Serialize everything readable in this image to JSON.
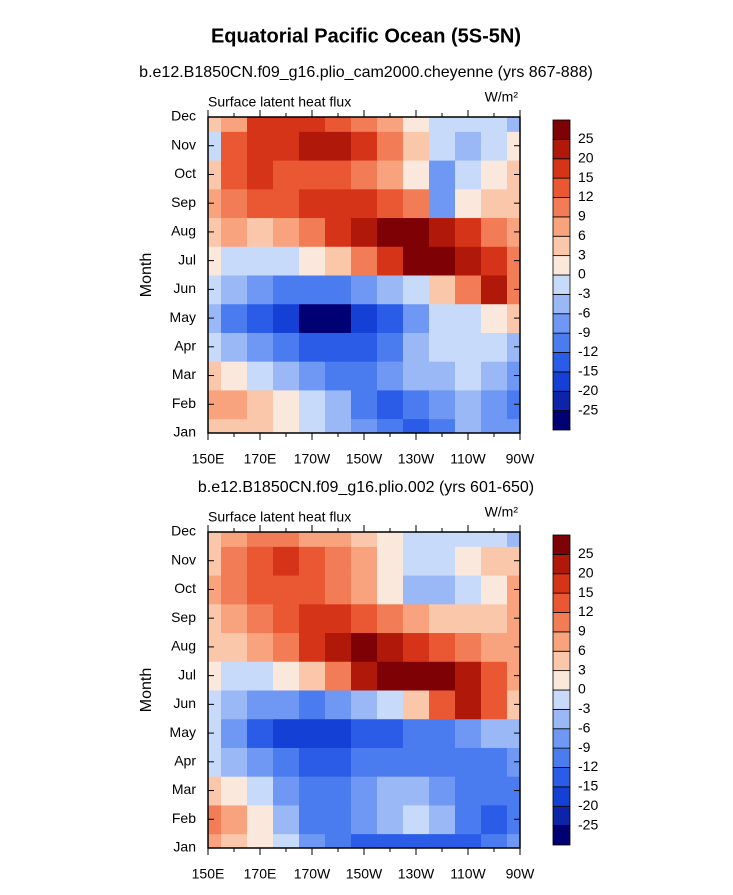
{
  "title": "Equatorial Pacific Ocean (5S-5N)",
  "chart_data": [
    {
      "type": "heatmap",
      "subtitle": "b.e12.B1850CN.f09_g16.plio_cam2000.cheyenne (yrs 867-888)",
      "label": "Surface latent heat flux",
      "units": "W/m²",
      "ylabel": "Month",
      "x": [
        150,
        160,
        170,
        180,
        190,
        200,
        210,
        220,
        230,
        240,
        250,
        260,
        270
      ],
      "categories": [
        "Jan",
        "Feb",
        "Mar",
        "Apr",
        "May",
        "Jun",
        "Jul",
        "Aug",
        "Sep",
        "Oct",
        "Nov",
        "Dec"
      ],
      "values": [
        [
          3,
          3,
          3,
          0,
          -3,
          -6,
          -9,
          -12,
          -15,
          -12,
          -6,
          -9,
          -9
        ],
        [
          6,
          6,
          3,
          0,
          -3,
          -6,
          -12,
          -15,
          -12,
          -9,
          -6,
          -9,
          -12
        ],
        [
          3,
          0,
          -3,
          -6,
          -9,
          -12,
          -12,
          -9,
          -6,
          -6,
          -3,
          -6,
          -9
        ],
        [
          -3,
          -6,
          -9,
          -12,
          -15,
          -15,
          -15,
          -12,
          -6,
          -3,
          -3,
          -3,
          -6
        ],
        [
          -6,
          -12,
          -15,
          -20,
          -26,
          -26,
          -20,
          -15,
          -9,
          -3,
          -3,
          0,
          3
        ],
        [
          -3,
          -6,
          -9,
          -12,
          -12,
          -12,
          -9,
          -6,
          -3,
          3,
          9,
          20,
          9
        ],
        [
          0,
          -3,
          -3,
          -3,
          0,
          3,
          9,
          15,
          25,
          25,
          20,
          15,
          9
        ],
        [
          3,
          6,
          3,
          6,
          9,
          15,
          20,
          25,
          25,
          20,
          15,
          9,
          6
        ],
        [
          6,
          9,
          12,
          12,
          15,
          15,
          15,
          12,
          9,
          -9,
          0,
          3,
          3
        ],
        [
          3,
          12,
          15,
          12,
          12,
          12,
          9,
          6,
          0,
          -9,
          -3,
          0,
          3
        ],
        [
          -3,
          12,
          15,
          15,
          20,
          20,
          15,
          9,
          3,
          -3,
          -6,
          -3,
          0
        ],
        [
          3,
          6,
          15,
          15,
          15,
          12,
          9,
          6,
          0,
          -3,
          -3,
          -3,
          -6
        ]
      ],
      "xlim": [
        150,
        270
      ],
      "xticks": [
        {
          "value": 150,
          "label": "150E"
        },
        {
          "value": 170,
          "label": "170E"
        },
        {
          "value": 190,
          "label": "170W"
        },
        {
          "value": 210,
          "label": "150W"
        },
        {
          "value": 230,
          "label": "130W"
        },
        {
          "value": 250,
          "label": "110W"
        },
        {
          "value": 270,
          "label": "90W"
        }
      ],
      "levels": [
        -25,
        -20,
        -15,
        -12,
        -9,
        -6,
        -3,
        0,
        3,
        6,
        9,
        12,
        15,
        20,
        25
      ],
      "colors": [
        "#000073",
        "#0d23a8",
        "#1440d6",
        "#2a5ce8",
        "#4a7cf0",
        "#6f98f4",
        "#9ab8f6",
        "#c8daf9",
        "#fbe8dc",
        "#fbc7aa",
        "#f8a27e",
        "#f27c55",
        "#ea5733",
        "#d53419",
        "#b0180a",
        "#7e0205"
      ]
    },
    {
      "type": "heatmap",
      "subtitle": "b.e12.B1850CN.f09_g16.plio.002 (yrs 601-650)",
      "label": "Surface latent heat flux",
      "units": "W/m²",
      "ylabel": "Month",
      "x": [
        150,
        160,
        170,
        180,
        190,
        200,
        210,
        220,
        230,
        240,
        250,
        260,
        270
      ],
      "categories": [
        "Jan",
        "Feb",
        "Mar",
        "Apr",
        "May",
        "Jun",
        "Jul",
        "Aug",
        "Sep",
        "Oct",
        "Nov",
        "Dec"
      ],
      "values": [
        [
          6,
          3,
          0,
          -3,
          -9,
          -12,
          -15,
          -15,
          -15,
          -15,
          -15,
          -12,
          -9
        ],
        [
          9,
          6,
          0,
          -6,
          -12,
          -12,
          -9,
          -6,
          -3,
          -6,
          -12,
          -15,
          -12
        ],
        [
          3,
          0,
          -3,
          -9,
          -12,
          -12,
          -9,
          -6,
          -6,
          -9,
          -12,
          -12,
          -12
        ],
        [
          -3,
          -6,
          -9,
          -12,
          -15,
          -15,
          -12,
          -12,
          -12,
          -12,
          -12,
          -12,
          -9
        ],
        [
          -3,
          -9,
          -15,
          -20,
          -20,
          -20,
          -15,
          -15,
          -12,
          -12,
          -9,
          -6,
          -6
        ],
        [
          -3,
          -6,
          -9,
          -9,
          -12,
          -9,
          -6,
          -3,
          3,
          12,
          20,
          12,
          3
        ],
        [
          0,
          -3,
          -3,
          0,
          3,
          9,
          20,
          25,
          25,
          25,
          20,
          12,
          6
        ],
        [
          3,
          3,
          6,
          9,
          15,
          20,
          25,
          20,
          15,
          12,
          9,
          6,
          6
        ],
        [
          3,
          6,
          9,
          12,
          15,
          15,
          12,
          9,
          6,
          3,
          3,
          3,
          6
        ],
        [
          6,
          9,
          12,
          12,
          12,
          9,
          6,
          0,
          -6,
          -6,
          -3,
          0,
          6
        ],
        [
          3,
          9,
          12,
          15,
          12,
          9,
          6,
          0,
          -3,
          -3,
          0,
          3,
          3
        ],
        [
          3,
          6,
          9,
          9,
          6,
          6,
          3,
          0,
          -3,
          -3,
          -3,
          -3,
          -6
        ]
      ],
      "xlim": [
        150,
        270
      ],
      "xticks": [
        {
          "value": 150,
          "label": "150E"
        },
        {
          "value": 170,
          "label": "170E"
        },
        {
          "value": 190,
          "label": "170W"
        },
        {
          "value": 210,
          "label": "150W"
        },
        {
          "value": 230,
          "label": "130W"
        },
        {
          "value": 250,
          "label": "110W"
        },
        {
          "value": 270,
          "label": "90W"
        }
      ],
      "levels": [
        -25,
        -20,
        -15,
        -12,
        -9,
        -6,
        -3,
        0,
        3,
        6,
        9,
        12,
        15,
        20,
        25
      ],
      "colors": [
        "#000073",
        "#0d23a8",
        "#1440d6",
        "#2a5ce8",
        "#4a7cf0",
        "#6f98f4",
        "#9ab8f6",
        "#c8daf9",
        "#fbe8dc",
        "#fbc7aa",
        "#f8a27e",
        "#f27c55",
        "#ea5733",
        "#d53419",
        "#b0180a",
        "#7e0205"
      ]
    }
  ]
}
